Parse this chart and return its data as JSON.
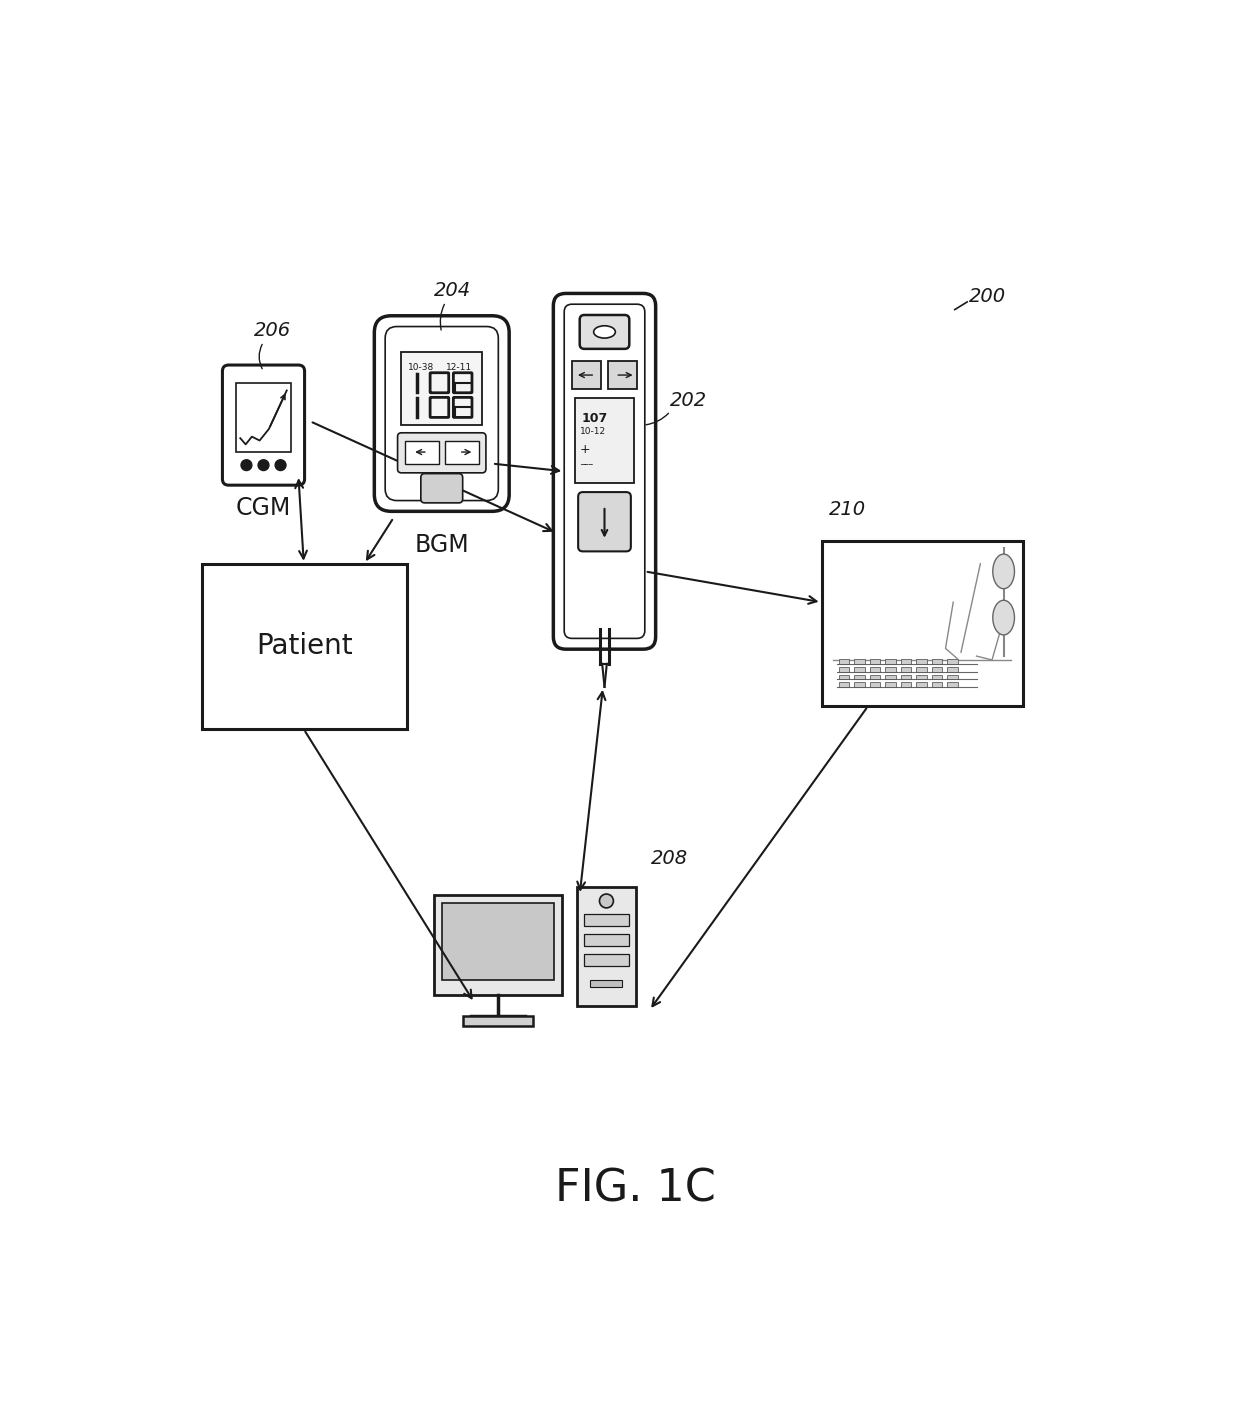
{
  "title": "FIG. 1C",
  "background_color": "#ffffff",
  "text_color": "#1a1a1a",
  "line_color": "#1a1a1a",
  "line_width": 1.5,
  "labels": {
    "cgm": "CGM",
    "bgm": "BGM",
    "patient": "Patient",
    "num_200": "200",
    "num_202": "202",
    "num_204": "204",
    "num_206": "206",
    "num_208": "208",
    "num_210": "210"
  }
}
